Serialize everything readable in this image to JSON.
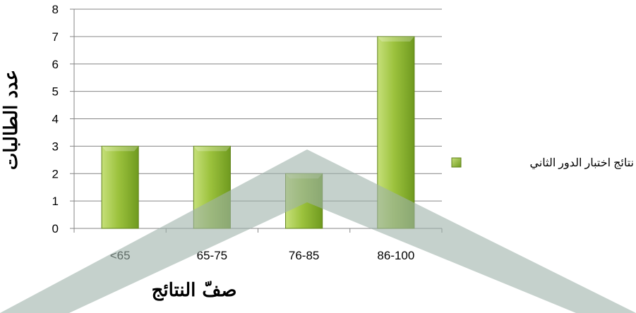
{
  "chart_data": {
    "type": "bar",
    "categories": [
      "<65",
      "65-75",
      "76-85",
      "86-100"
    ],
    "series": [
      {
        "name": "نتائج اختبار الدور الثاني",
        "values": [
          3,
          3,
          2,
          7
        ]
      }
    ],
    "xlabel": "صفّ النتائج",
    "ylabel": "عدد الطالبات",
    "ylim": [
      0,
      8
    ],
    "yticks": [
      "0",
      "1",
      "2",
      "3",
      "4",
      "5",
      "6",
      "7",
      "8"
    ],
    "grid": true,
    "legend": "right",
    "colors": {
      "bar_light": "#c6e07a",
      "bar_mid": "#9cc23d",
      "bar_dark": "#6f9a1f",
      "bar_stroke": "#5f8218",
      "grid": "#868686",
      "watermark": "#9fb3aa"
    }
  }
}
